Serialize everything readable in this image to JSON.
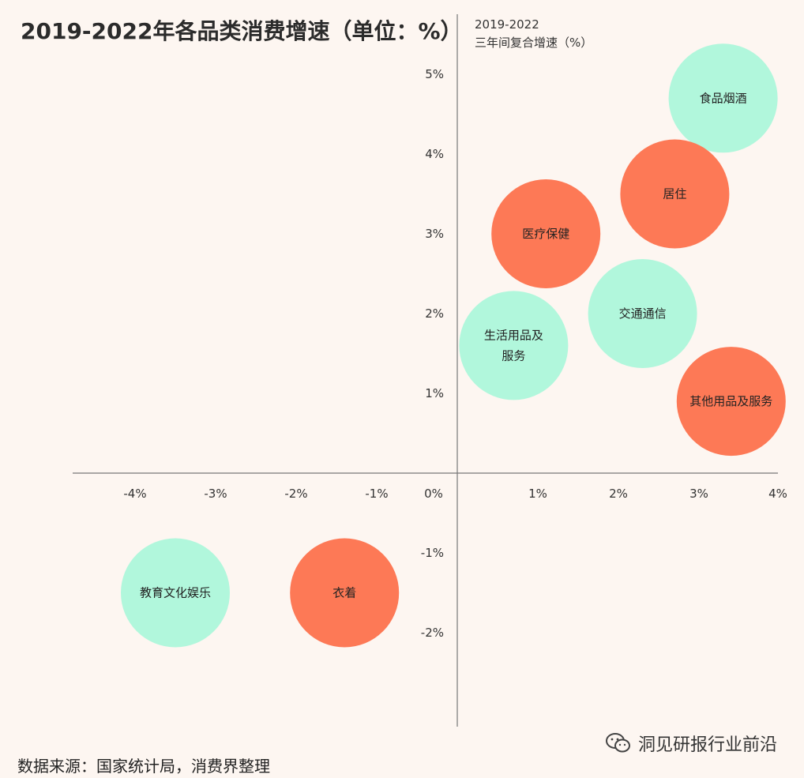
{
  "chart_data": {
    "type": "scatter",
    "title": "2019-2022年各品类消费增速（单位：%）",
    "corner_label": [
      "2019-2022",
      "三年间复合增速（%）"
    ],
    "xlim": [
      -4.5,
      4
    ],
    "ylim": [
      -3.2,
      5.1
    ],
    "x_ticks": [
      {
        "value": -4,
        "label": "-4%"
      },
      {
        "value": -3,
        "label": "-3%"
      },
      {
        "value": -2,
        "label": "-2%"
      },
      {
        "value": -1,
        "label": "-1%"
      },
      {
        "value": 0,
        "label": "0%"
      },
      {
        "value": 1,
        "label": "1%"
      },
      {
        "value": 2,
        "label": "2%"
      },
      {
        "value": 3,
        "label": "3%"
      },
      {
        "value": 4,
        "label": "4%"
      }
    ],
    "y_ticks": [
      {
        "value": 5,
        "label": "5%"
      },
      {
        "value": 4,
        "label": "4%"
      },
      {
        "value": 3,
        "label": "3%"
      },
      {
        "value": 2,
        "label": "2%"
      },
      {
        "value": 1,
        "label": "1%"
      },
      {
        "value": -1,
        "label": "-1%"
      },
      {
        "value": -2,
        "label": "-2%"
      }
    ],
    "points": [
      {
        "label": "食品烟酒",
        "x": 3.3,
        "y": 4.7,
        "color": "#b1f7dc"
      },
      {
        "label": "居住",
        "x": 2.7,
        "y": 3.5,
        "color": "#fd7956"
      },
      {
        "label": "医疗保健",
        "x": 1.1,
        "y": 3.0,
        "color": "#fd7956"
      },
      {
        "label": "交通通信",
        "x": 2.3,
        "y": 2.0,
        "color": "#b1f7dc"
      },
      {
        "label": "生活用品及服务",
        "lines": [
          "生活用品及",
          "服务"
        ],
        "x": 0.7,
        "y": 1.6,
        "color": "#b1f7dc"
      },
      {
        "label": "其他用品及服务",
        "x": 3.4,
        "y": 0.9,
        "color": "#fd7956"
      },
      {
        "label": "教育文化娱乐",
        "x": -3.5,
        "y": -1.5,
        "color": "#b1f7dc"
      },
      {
        "label": "衣着",
        "x": -1.4,
        "y": -1.5,
        "color": "#fd7956"
      }
    ]
  },
  "footer": {
    "source": "数据来源：国家统计局，消费界整理",
    "brand": "洞见研报行业前沿"
  }
}
